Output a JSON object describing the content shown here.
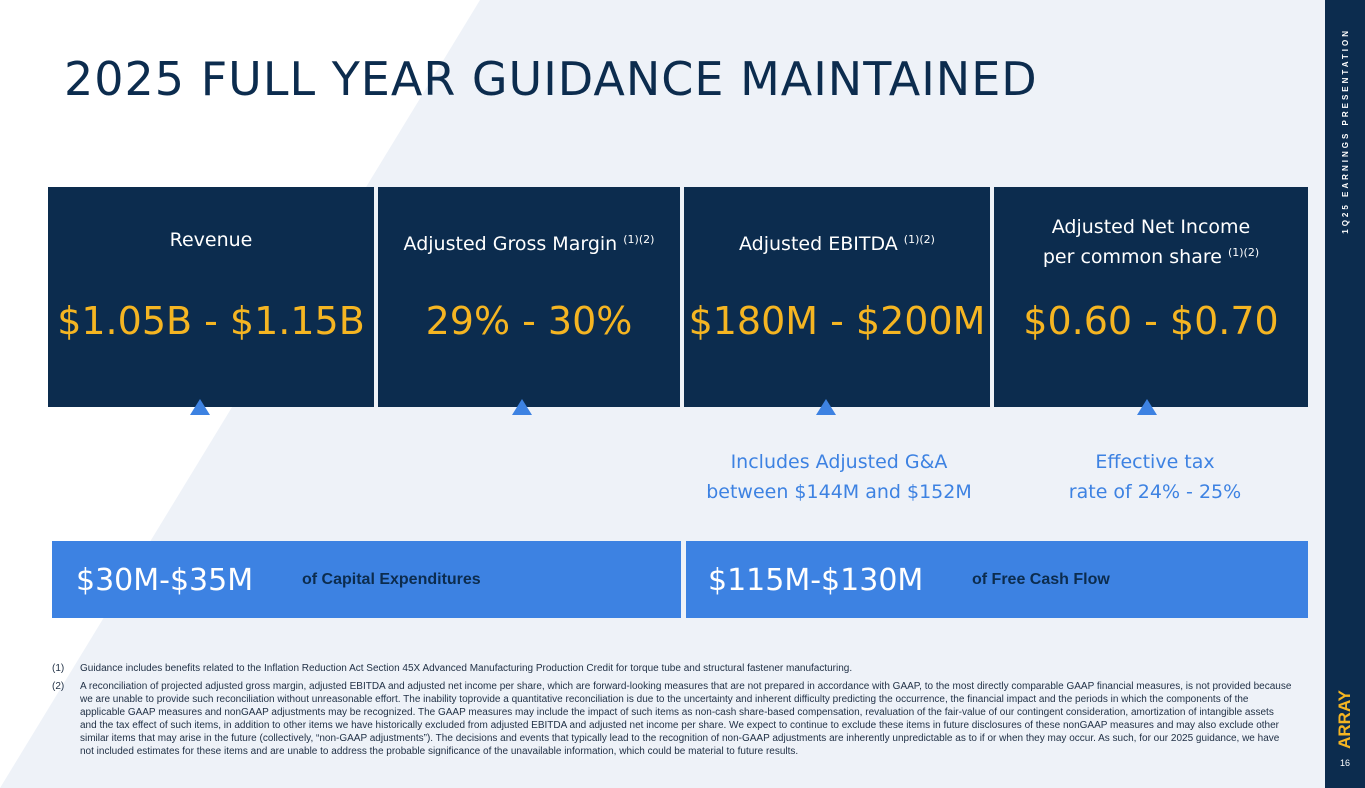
{
  "title": "2025 FULL YEAR GUIDANCE MAINTAINED",
  "sidebar": {
    "label": "1Q25 EARNINGS PRESENTATION",
    "logo": "ARRAY",
    "page_number": "16"
  },
  "cards": [
    {
      "label": "Revenue",
      "sup": "",
      "value": "$1.05B - $1.15B"
    },
    {
      "label": "Adjusted Gross Margin",
      "sup": "(1)(2)",
      "value": "29% - 30%"
    },
    {
      "label": "Adjusted EBITDA",
      "sup": "(1)(2)",
      "value": "$180M - $200M"
    },
    {
      "label_line1": "Adjusted Net Income",
      "label_line2": "per common share",
      "sup": "(1)(2)",
      "value": "$0.60 - $0.70"
    }
  ],
  "notes": [
    {
      "line1": "Includes Adjusted G&A",
      "line2": "between $144M and $152M"
    },
    {
      "line1": "Effective tax",
      "line2": "rate of 24% - 25%"
    }
  ],
  "bars": [
    {
      "value": "$30M-$35M",
      "label": "of Capital Expenditures"
    },
    {
      "value": "$115M-$130M",
      "label": "of Free Cash Flow"
    }
  ],
  "footnotes": [
    {
      "num": "(1)",
      "text": "Guidance includes benefits related to the Inflation Reduction Act Section 45X Advanced Manufacturing Production Credit for torque tube and structural fastener manufacturing."
    },
    {
      "num": "(2)",
      "text": "A reconciliation of projected adjusted gross margin, adjusted EBITDA and adjusted net income per share, which are forward-looking measures that are not prepared in accordance with GAAP, to the most directly comparable GAAP financial measures, is not provided because we are unable to provide such reconciliation without unreasonable effort. The inability toprovide a quantitative reconciliation is due to the uncertainty and inherent difficulty predicting the occurrence, the financial impact and the periods in which the components of the applicable GAAP measures and nonGAAP adjustments may be recognized. The GAAP measures may include the impact of such items as non-cash share-based compensation, revaluation of the fair-value of our contingent consideration, amortization of intangible assets and the tax effect of such items, in addition to other items we have historically excluded from adjusted EBITDA and adjusted net income per share. We expect to continue to exclude these items in future disclosures of these nonGAAP measures and may also exclude other similar items that may arise in the future (collectively, “non-GAAP adjustments”). The decisions and events that typically lead to the recognition of non-GAAP adjustments are inherently unpredictable as to if or when they may occur. As such, for our 2025 guidance, we have not included estimates for these items and are unable to address the probable significance of the unavailable information, which could be material to future results."
    }
  ]
}
